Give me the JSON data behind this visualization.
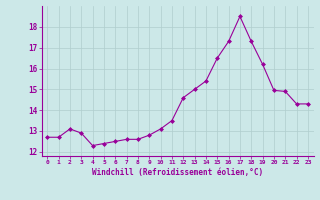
{
  "x": [
    0,
    1,
    2,
    3,
    4,
    5,
    6,
    7,
    8,
    9,
    10,
    11,
    12,
    13,
    14,
    15,
    16,
    17,
    18,
    19,
    20,
    21,
    22,
    23
  ],
  "y": [
    12.7,
    12.7,
    13.1,
    12.9,
    12.3,
    12.4,
    12.5,
    12.6,
    12.6,
    12.8,
    13.1,
    13.5,
    14.6,
    15.0,
    15.4,
    16.5,
    17.3,
    18.5,
    17.3,
    16.2,
    14.95,
    14.9,
    14.3,
    14.3
  ],
  "line_color": "#990099",
  "marker": "D",
  "marker_size": 2,
  "bg_color": "#cce8e8",
  "grid_color": "#b0cece",
  "xlabel": "Windchill (Refroidissement éolien,°C)",
  "tick_color": "#990099",
  "ylim": [
    11.8,
    19.0
  ],
  "yticks": [
    12,
    13,
    14,
    15,
    16,
    17,
    18
  ],
  "xtick_labels": [
    "0",
    "1",
    "2",
    "3",
    "4",
    "5",
    "6",
    "7",
    "8",
    "9",
    "10",
    "11",
    "12",
    "13",
    "14",
    "15",
    "16",
    "17",
    "18",
    "19",
    "20",
    "21",
    "22",
    "23"
  ]
}
